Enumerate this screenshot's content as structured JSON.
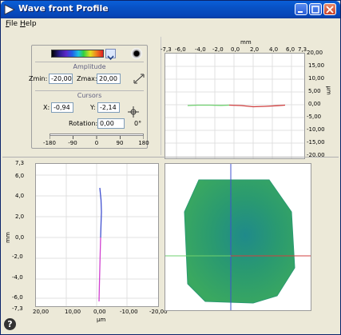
{
  "window": {
    "title": "Wave front Profile"
  },
  "menu": {
    "file": "File",
    "help": "Help"
  },
  "panel": {
    "amplitude_label": "Amplitude",
    "zmin_label": "Zmin:",
    "zmin_value": "-20,00",
    "zmax_label": "Zmax:",
    "zmax_value": "20,00",
    "cursors_label": "Cursors",
    "x_label": "X:",
    "x_value": "-0,94",
    "y_label": "Y:",
    "y_value": "-2,14",
    "rotation_label": "Rotation:",
    "rotation_value": "0,00",
    "rotation_unit": "0°",
    "slider_ticks": [
      "-180",
      "-90",
      "0",
      "90",
      "180"
    ]
  },
  "top_plot": {
    "unit_top": "mm",
    "unit_right": "μm",
    "x_ticks": [
      "-7,3",
      "-6,0",
      "-4,0",
      "-2,0",
      "0,0",
      "2,0",
      "4,0",
      "6,0",
      "7,3"
    ],
    "y_ticks": [
      "20,00",
      "15,00",
      "10,00",
      "5,00",
      "0,00",
      "-5,00",
      "-10,00",
      "-15,00",
      "-20,00"
    ]
  },
  "left_plot": {
    "unit_left": "mm",
    "unit_bottom": "μm",
    "y_ticks": [
      "7,3",
      "6,0",
      "4,0",
      "2,0",
      "0,0",
      "-2,0",
      "-4,0",
      "-6,0",
      "-7,3"
    ],
    "x_ticks": [
      "20,00",
      "10,00",
      "0,00",
      "-10,00",
      "-20,00"
    ]
  },
  "colors": {
    "accent_green": "#6fd06f",
    "accent_red": "#d04040",
    "accent_magenta": "#d040d0",
    "accent_blue": "#4050d0",
    "map_base": "#2a9a70"
  },
  "icons": [
    "wavefront-app-icon",
    "minimize-icon",
    "maximize-icon",
    "close-icon",
    "dropdown-arrow-icon",
    "reset-icon",
    "fit-icon",
    "crosshair-icon",
    "help-icon"
  ]
}
